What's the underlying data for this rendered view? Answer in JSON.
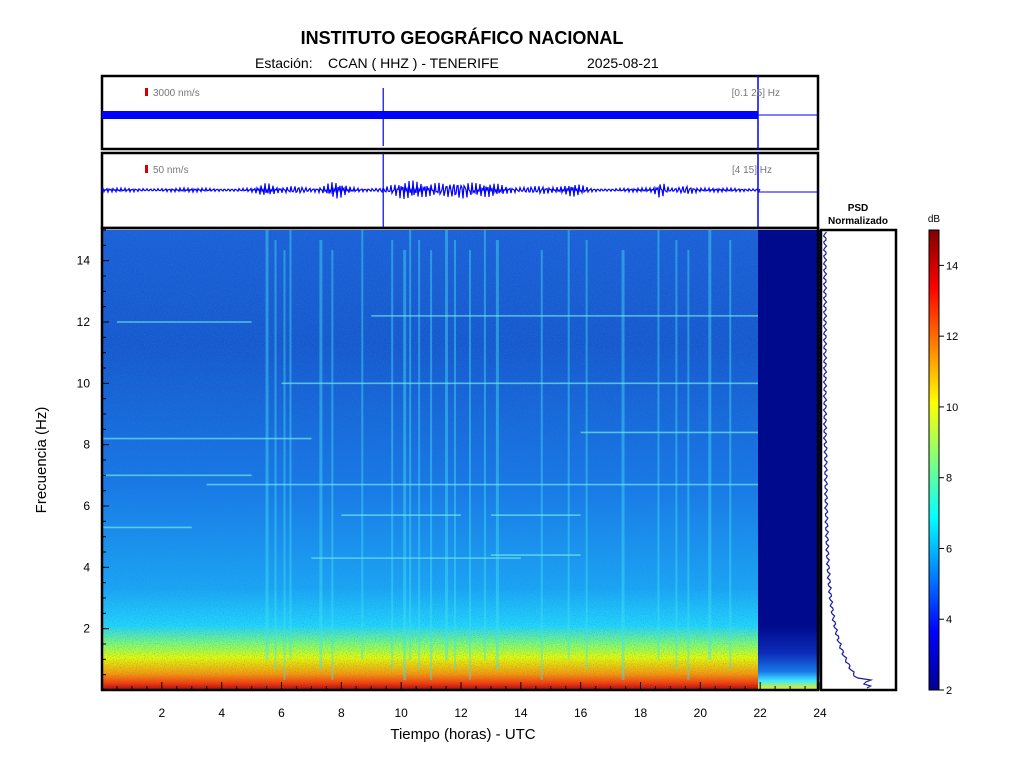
{
  "header": {
    "title": "INSTITUTO GEOGRÁFICO NACIONAL",
    "station_label": "Estación:",
    "station": "CCAN ( HHZ ) - TENERIFE",
    "date": "2025-08-21"
  },
  "colors": {
    "trace": "#0000ff",
    "marker": "#d40000",
    "scale_text": "#777777",
    "psd_line": "#1a1aa0"
  },
  "trace_top": {
    "scale_label": "3000 nm/s",
    "band_label": "[0.1 25] Hz"
  },
  "trace_bottom": {
    "scale_label": "50 nm/s",
    "band_label": "[4 15] Hz"
  },
  "psd": {
    "title_line1": "PSD",
    "title_line2": "Normalizado"
  },
  "colorbar": {
    "label": "dB",
    "ticks": [
      "2",
      "4",
      "6",
      "8",
      "10",
      "12",
      "14"
    ]
  },
  "chart_data": {
    "type": "heatmap",
    "xlabel": "Tiempo (horas) - UTC",
    "ylabel": "Frecuencia  (Hz)",
    "xlim": [
      0,
      24
    ],
    "ylim": [
      0,
      15
    ],
    "x_ticks": [
      "2",
      "4",
      "6",
      "8",
      "10",
      "12",
      "14",
      "16",
      "18",
      "20",
      "22",
      "24"
    ],
    "y_ticks": [
      "2",
      "4",
      "6",
      "8",
      "10",
      "12",
      "14"
    ],
    "data_end_hour": 22,
    "marker_hour": 9.4,
    "color_range_db": [
      2,
      15
    ]
  }
}
